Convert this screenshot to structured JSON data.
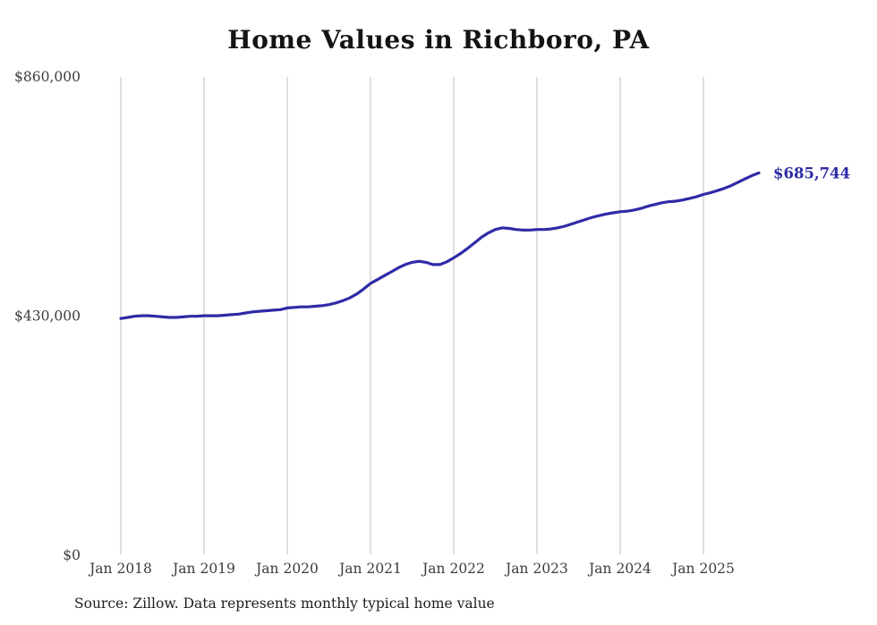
{
  "source_note": "Source: Zillow. Data represents monthly typical home value",
  "chart_data": {
    "type": "line",
    "title": "Home Values in Richboro, PA",
    "x_tick_labels": [
      "Jan 2018",
      "Jan 2019",
      "Jan 2020",
      "Jan 2021",
      "Jan 2022",
      "Jan 2023",
      "Jan 2024",
      "Jan 2025"
    ],
    "x_range": {
      "start": "2018-01",
      "end": "2025-09",
      "interval": "monthly"
    },
    "y_axis": {
      "lim": [
        0,
        860000
      ],
      "ticks": [
        {
          "value": 0,
          "label": "$0"
        },
        {
          "value": 430000,
          "label": "$430,000"
        },
        {
          "value": 860000,
          "label": "$860,000"
        }
      ]
    },
    "grid": {
      "vertical": true,
      "horizontal": false,
      "color": "#cccccc"
    },
    "legend": "none",
    "text_color": "#3c3c3c",
    "series": [
      {
        "name": "Typical home value",
        "color": "#2e2ba6",
        "monthly_values": [
          424000,
          426000,
          428000,
          429000,
          429000,
          428000,
          427000,
          426000,
          426000,
          427000,
          428000,
          428000,
          429000,
          429000,
          429000,
          430000,
          431000,
          432000,
          434000,
          436000,
          437000,
          438000,
          439000,
          440000,
          443000,
          444000,
          445000,
          445000,
          446000,
          447000,
          449000,
          452000,
          456000,
          461000,
          468000,
          477000,
          487000,
          494000,
          501000,
          508000,
          515000,
          521000,
          525000,
          527000,
          525000,
          521000,
          521000,
          526000,
          533000,
          541000,
          550000,
          560000,
          570000,
          578000,
          584000,
          587000,
          586000,
          584000,
          583000,
          583000,
          584000,
          584000,
          585000,
          587000,
          590000,
          594000,
          598000,
          602000,
          606000,
          609000,
          612000,
          614000,
          616000,
          617000,
          619000,
          622000,
          626000,
          629000,
          632000,
          634000,
          635000,
          637000,
          640000,
          643000,
          647000,
          650000,
          654000,
          658000,
          663000,
          669000,
          675000,
          681000,
          685744
        ]
      }
    ],
    "end_annotation": {
      "value": 685744,
      "label": "$685,744"
    }
  }
}
